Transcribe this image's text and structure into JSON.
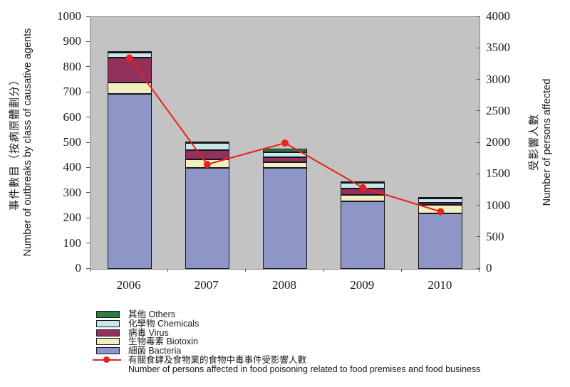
{
  "chart_data": {
    "type": "bar",
    "subtype": "stacked-bars-with-line-overlay",
    "title": "",
    "grid": false,
    "plot_bg_color": "#C3C3C3",
    "categories": [
      "2006",
      "2007",
      "2008",
      "2009",
      "2010"
    ],
    "series": [
      {
        "name_zh": "細菌",
        "name_en": "Bacteria",
        "color": "#8E96C8",
        "values": [
          695,
          400,
          400,
          269,
          220
        ]
      },
      {
        "name_zh": "生物毒素",
        "name_en": "Biotoxin",
        "color": "#F0EFC0",
        "values": [
          45,
          35,
          24,
          24,
          34
        ]
      },
      {
        "name_zh": "病毒",
        "name_en": "Virus",
        "color": "#93305C",
        "values": [
          100,
          38,
          20,
          27,
          10
        ]
      },
      {
        "name_zh": "化學物",
        "name_en": "Chemicals",
        "color": "#C9E6EA",
        "values": [
          18,
          26,
          20,
          22,
          15
        ]
      },
      {
        "name_zh": "其他",
        "name_en": "Others",
        "color": "#2C7C43",
        "values": [
          2,
          8,
          14,
          2,
          4
        ]
      }
    ],
    "line_series": {
      "name_zh": "有關食肆及食物業的食物中毒事件受影響人數",
      "name_en": "Number of persons affected in food poisoning related to food premises and food business",
      "color": "#E8231C",
      "axis": "right",
      "values": [
        3350,
        1660,
        2000,
        1290,
        910
      ]
    },
    "left_axis": {
      "title_zh": "事件數目（按病原體劃分）",
      "title_en": "Number of outbreaks by class of causative agents",
      "min": 0,
      "max": 1000,
      "step": 100,
      "tick_labels": [
        "0",
        "100",
        "200",
        "300",
        "400",
        "500",
        "600",
        "700",
        "800",
        "900",
        "1000"
      ]
    },
    "right_axis": {
      "title_zh": "受影響人數",
      "title_en": "Number of persons affected",
      "min": 0,
      "max": 4000,
      "step": 500,
      "tick_labels": [
        "0",
        "500",
        "1000",
        "1500",
        "2000",
        "2500",
        "3000",
        "3500",
        "4000"
      ]
    },
    "legend_position": "bottom-left",
    "legend_order_top_to_bottom": [
      "Others",
      "Chemicals",
      "Virus",
      "Biotoxin",
      "Bacteria",
      "persons-affected-line"
    ]
  }
}
